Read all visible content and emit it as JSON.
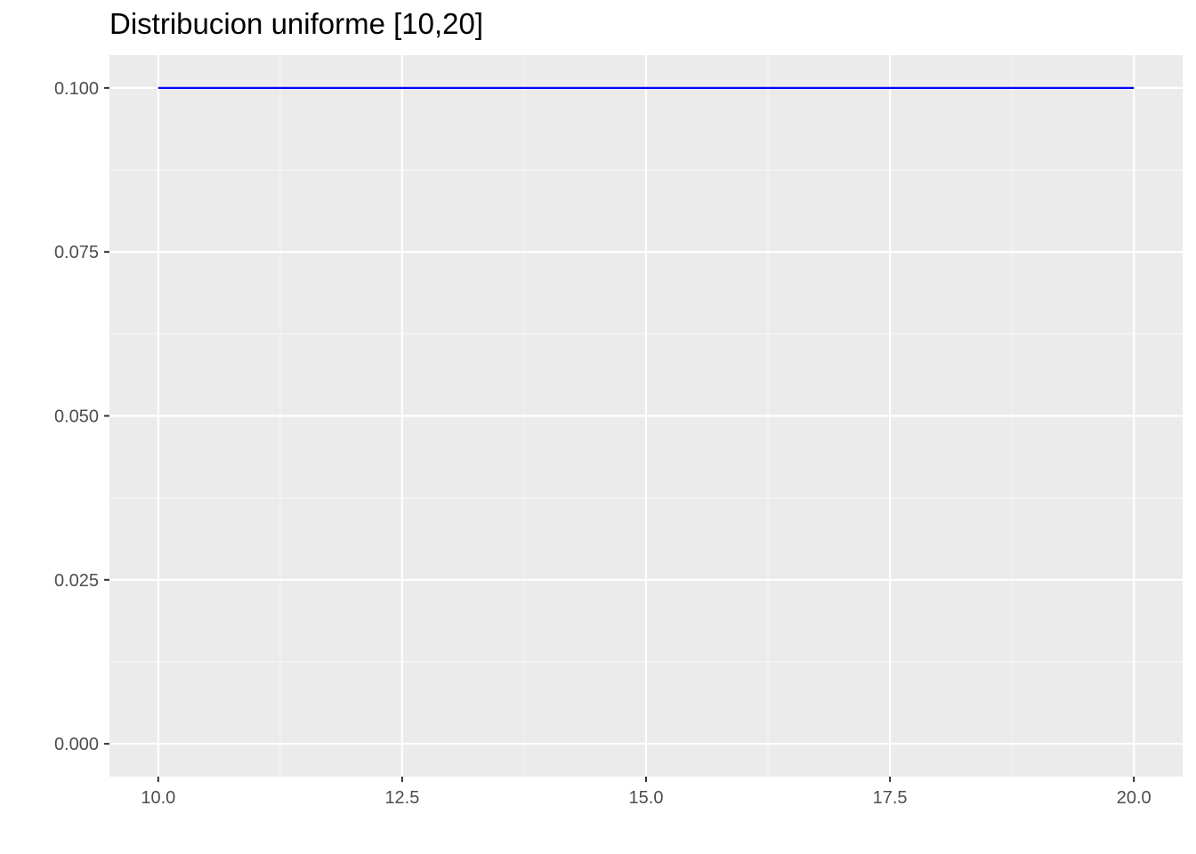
{
  "chart_data": {
    "type": "line",
    "title": "Distribucion uniforme [10,20]",
    "xlabel": "",
    "ylabel": "",
    "xlim": [
      9.5,
      20.5
    ],
    "ylim": [
      -0.005,
      0.105
    ],
    "x_ticks": [
      10.0,
      12.5,
      15.0,
      17.5,
      20.0
    ],
    "x_tick_labels": [
      "10.0",
      "12.5",
      "15.0",
      "17.5",
      "20.0"
    ],
    "x_minor_ticks": [
      11.25,
      13.75,
      16.25,
      18.75
    ],
    "y_ticks": [
      0.0,
      0.025,
      0.05,
      0.075,
      0.1
    ],
    "y_tick_labels": [
      "0.000",
      "0.025",
      "0.050",
      "0.075",
      "0.100"
    ],
    "y_minor_ticks": [
      0.0125,
      0.0375,
      0.0625,
      0.0875
    ],
    "grid": true,
    "legend": "none",
    "series": [
      {
        "color": "#0000ff",
        "x": [
          10,
          20
        ],
        "y": [
          0.1,
          0.1
        ]
      }
    ],
    "colors": {
      "panel_background": "#ebebeb",
      "grid_major": "#ffffff",
      "grid_minor": "#f5f5f5",
      "tick_text": "#4d4d4d",
      "tick_mark": "#333333"
    }
  }
}
